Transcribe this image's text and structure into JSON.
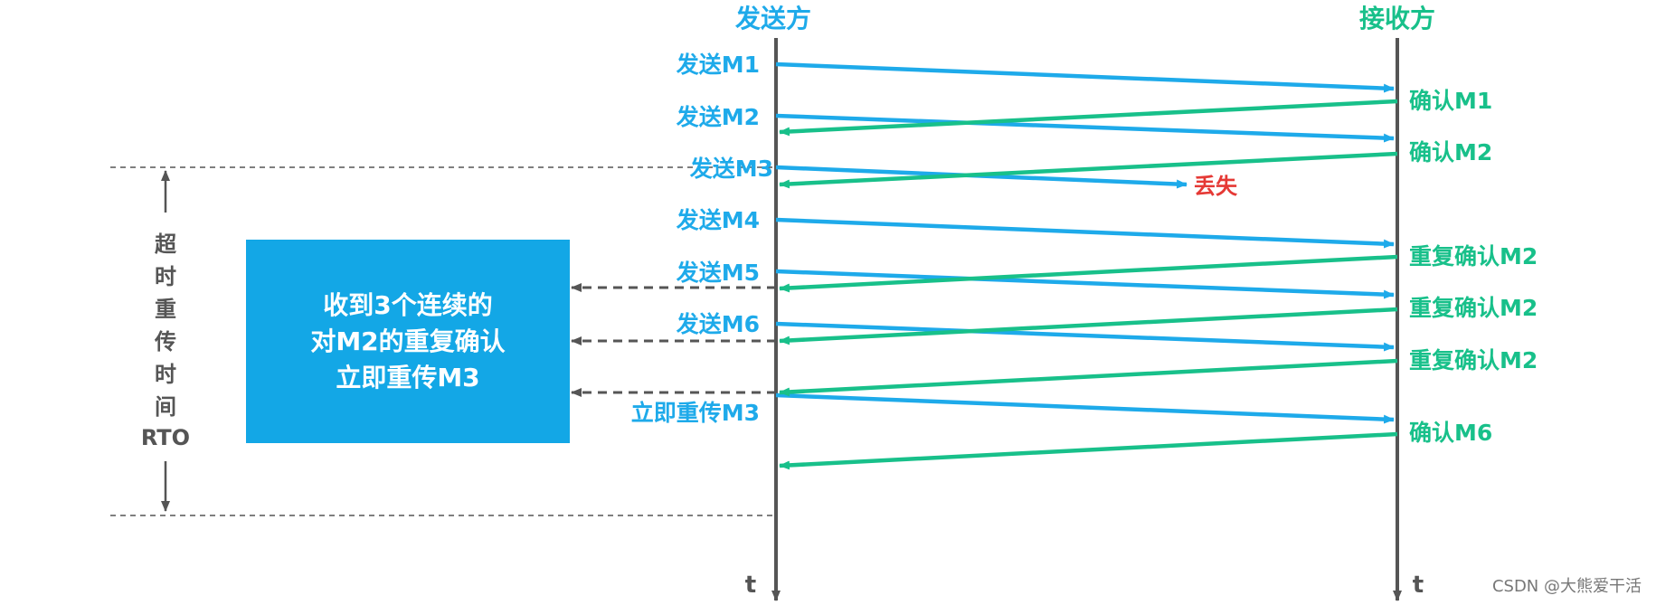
{
  "colors": {
    "send": "#1eaaea",
    "ack": "#18c08a",
    "lost": "#e53935",
    "axis": "#555555",
    "box": "#13a7e6",
    "dash": "#555555"
  },
  "headers": {
    "sender": "发送方",
    "receiver": "接收方"
  },
  "time_axis": {
    "sender_t": "t",
    "receiver_t": "t"
  },
  "send_labels": [
    "发送M1",
    "发送M2",
    "发送M3",
    "发送M4",
    "发送M5",
    "发送M6",
    "立即重传M3"
  ],
  "ack_labels": [
    "确认M1",
    "确认M2",
    "重复确认M2",
    "重复确认M2",
    "重复确认M2",
    "确认M6"
  ],
  "lost_label": "丢失",
  "rto_label": {
    "chars": [
      "超",
      "时",
      "重",
      "传",
      "时",
      "间"
    ],
    "abbr": "RTO"
  },
  "note_box": {
    "lines": [
      "收到3个连续的",
      "对M2的重复确认",
      "立即重传M3"
    ]
  },
  "watermark": "CSDN @大熊爱干活"
}
